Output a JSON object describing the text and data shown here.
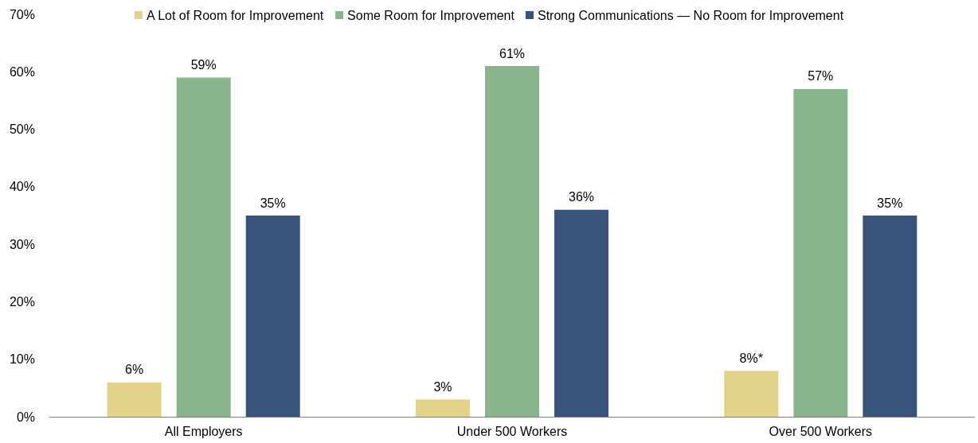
{
  "chart_data": {
    "type": "bar",
    "categories": [
      "All Employers",
      "Under 500 Workers",
      "Over 500 Workers"
    ],
    "series": [
      {
        "name": "A Lot of Room for Improvement",
        "color": "#e2d388",
        "values": [
          6,
          3,
          8
        ],
        "value_labels": [
          "6%",
          "3%",
          "8%*"
        ]
      },
      {
        "name": "Some Room for Improvement",
        "color": "#8ab58c",
        "values": [
          59,
          61,
          57
        ],
        "value_labels": [
          "59%",
          "61%",
          "57%"
        ]
      },
      {
        "name": "Strong Communications — No Room for Improvement",
        "color": "#3a537c",
        "values": [
          35,
          36,
          35
        ],
        "value_labels": [
          "35%",
          "36%",
          "35%"
        ]
      }
    ],
    "ylim": [
      0,
      70
    ],
    "yticks": [
      {
        "value": 0,
        "label": "0%"
      },
      {
        "value": 10,
        "label": "10%"
      },
      {
        "value": 20,
        "label": "20%"
      },
      {
        "value": 30,
        "label": "30%"
      },
      {
        "value": 40,
        "label": "40%"
      },
      {
        "value": 50,
        "label": "50%"
      },
      {
        "value": 60,
        "label": "60%"
      },
      {
        "value": 70,
        "label": "70%"
      }
    ],
    "grid": false,
    "legend": "top"
  }
}
